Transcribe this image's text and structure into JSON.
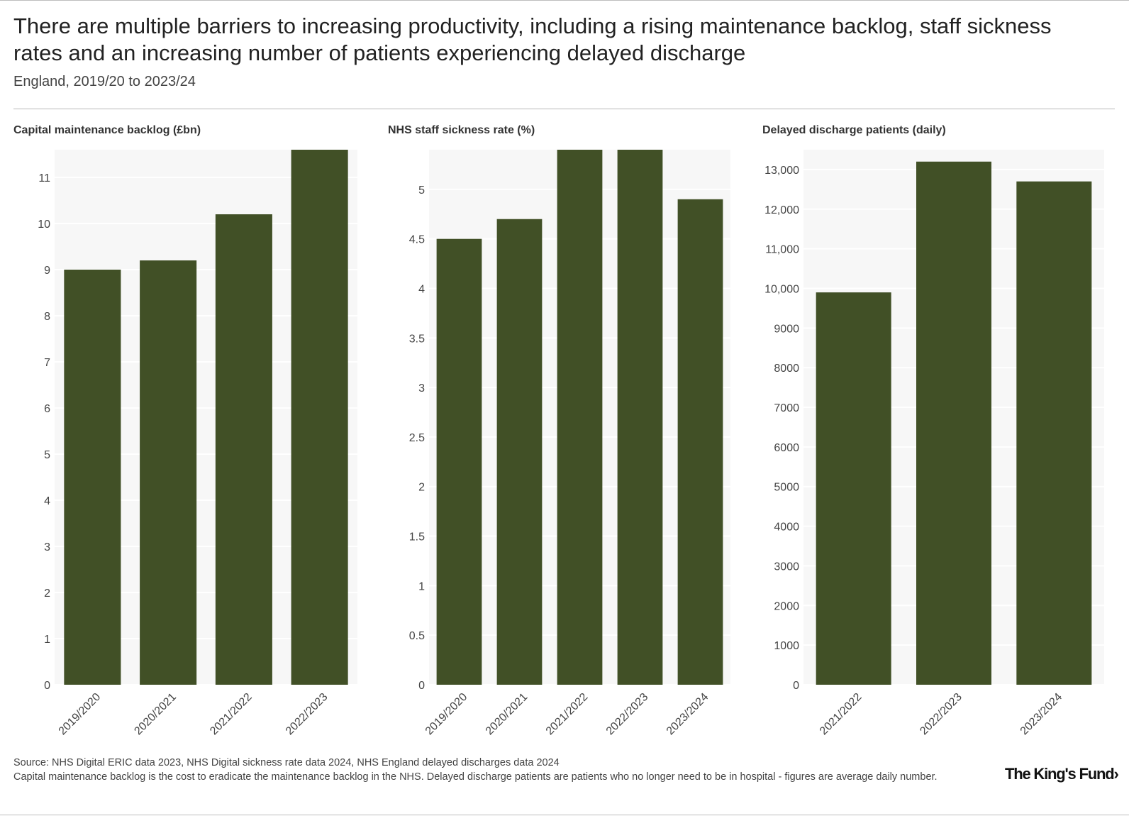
{
  "title": "There are multiple barriers to increasing productivity, including a rising maintenance backlog, staff sickness rates and an increasing number of patients experiencing delayed discharge",
  "subtitle": "England, 2019/20 to 2023/24",
  "colors": {
    "bar": "#415026",
    "plot_background": "#f7f7f7",
    "grid": "#ffffff"
  },
  "chart_data": [
    {
      "type": "bar",
      "title": "Capital maintenance backlog (£bn)",
      "categories": [
        "2019/2020",
        "2020/2021",
        "2021/2022",
        "2022/2023"
      ],
      "values": [
        9.0,
        9.2,
        10.2,
        11.6
      ],
      "yticks": [
        0,
        1,
        2,
        3,
        4,
        5,
        6,
        7,
        8,
        9,
        10,
        11
      ],
      "ytick_labels": [
        "0",
        "1",
        "2",
        "3",
        "4",
        "5",
        "6",
        "7",
        "8",
        "9",
        "10",
        "11"
      ],
      "ylim": [
        0,
        11.6
      ],
      "grid": true
    },
    {
      "type": "bar",
      "title": "NHS staff sickness rate (%)",
      "categories": [
        "2019/2020",
        "2020/2021",
        "2021/2022",
        "2022/2023",
        "2023/2024"
      ],
      "values": [
        4.5,
        4.7,
        5.4,
        5.4,
        4.9
      ],
      "yticks": [
        0,
        0.5,
        1,
        1.5,
        2,
        2.5,
        3,
        3.5,
        4,
        4.5,
        5
      ],
      "ytick_labels": [
        "0",
        "0.5",
        "1",
        "1.5",
        "2",
        "2.5",
        "3",
        "3.5",
        "4",
        "4.5",
        "5"
      ],
      "ylim": [
        0,
        5.4
      ],
      "grid": true
    },
    {
      "type": "bar",
      "title": "Delayed discharge patients (daily)",
      "categories": [
        "2021/2022",
        "2022/2023",
        "2023/2024"
      ],
      "values": [
        9900,
        13200,
        12700
      ],
      "yticks": [
        0,
        1000,
        2000,
        3000,
        4000,
        5000,
        6000,
        7000,
        8000,
        9000,
        10000,
        11000,
        12000,
        13000
      ],
      "ytick_labels": [
        "0",
        "1000",
        "2000",
        "3000",
        "4000",
        "5000",
        "6000",
        "7000",
        "8000",
        "9000",
        "10,000",
        "11,000",
        "12,000",
        "13,000"
      ],
      "ylim": [
        0,
        13500
      ],
      "grid": true
    }
  ],
  "footer": {
    "source": "Source: NHS Digital ERIC data 2023, NHS Digital sickness rate data 2024, NHS England delayed discharges data 2024",
    "note": "Capital maintenance backlog is the cost to eradicate the maintenance backlog in the NHS. Delayed discharge patients are patients who no longer need to be in hospital - figures are average daily number.",
    "logo_text": "The King's Fund"
  }
}
